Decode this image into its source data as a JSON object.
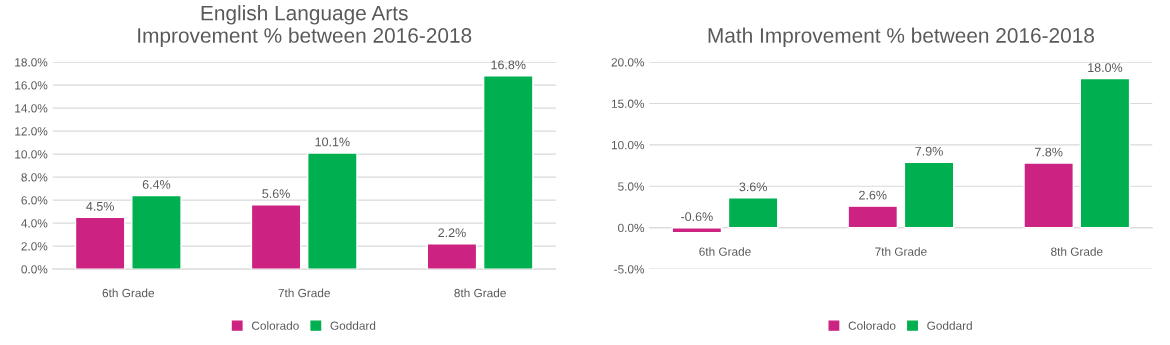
{
  "chart_data": [
    {
      "type": "bar",
      "title": "English Language Arts\nImprovement % between 2016-2018",
      "categories": [
        "6th Grade",
        "7th Grade",
        "8th Grade"
      ],
      "series": [
        {
          "name": "Colorado",
          "color": "#cc2281",
          "values": [
            4.5,
            5.6,
            2.2
          ],
          "value_labels": [
            "4.5%",
            "5.6%",
            "2.2%"
          ]
        },
        {
          "name": "Goddard",
          "color": "#00b050",
          "values": [
            6.4,
            10.1,
            16.8
          ],
          "value_labels": [
            "6.4%",
            "10.1%",
            "16.8%"
          ]
        }
      ],
      "ylim": [
        0,
        18
      ],
      "yticks": [
        {
          "value": 0,
          "label": "0.0%"
        },
        {
          "value": 2,
          "label": "2.0%"
        },
        {
          "value": 4,
          "label": "4.0%"
        },
        {
          "value": 6,
          "label": "6.0%"
        },
        {
          "value": 8,
          "label": "8.0%"
        },
        {
          "value": 10,
          "label": "10.0%"
        },
        {
          "value": 12,
          "label": "12.0%"
        },
        {
          "value": 14,
          "label": "14.0%"
        },
        {
          "value": 16,
          "label": "16.0%"
        },
        {
          "value": 18,
          "label": "18.0%"
        }
      ],
      "grid": "y",
      "legend": "bottom"
    },
    {
      "type": "bar",
      "title": "Math Improvement % between 2016-2018",
      "categories": [
        "6th Grade",
        "7th Grade",
        "8th Grade"
      ],
      "series": [
        {
          "name": "Colorado",
          "color": "#cc2281",
          "values": [
            -0.6,
            2.6,
            7.8
          ],
          "value_labels": [
            "-0.6%",
            "2.6%",
            "7.8%"
          ]
        },
        {
          "name": "Goddard",
          "color": "#00b050",
          "values": [
            3.6,
            7.9,
            18.0
          ],
          "value_labels": [
            "3.6%",
            "7.9%",
            "18.0%"
          ]
        }
      ],
      "ylim": [
        -5,
        20
      ],
      "yticks": [
        {
          "value": -5,
          "label": "-5.0%"
        },
        {
          "value": 0,
          "label": "0.0%"
        },
        {
          "value": 5,
          "label": "5.0%"
        },
        {
          "value": 10,
          "label": "10.0%"
        },
        {
          "value": 15,
          "label": "15.0%"
        },
        {
          "value": 20,
          "label": "20.0%"
        }
      ],
      "grid": "y",
      "legend": "bottom"
    }
  ]
}
